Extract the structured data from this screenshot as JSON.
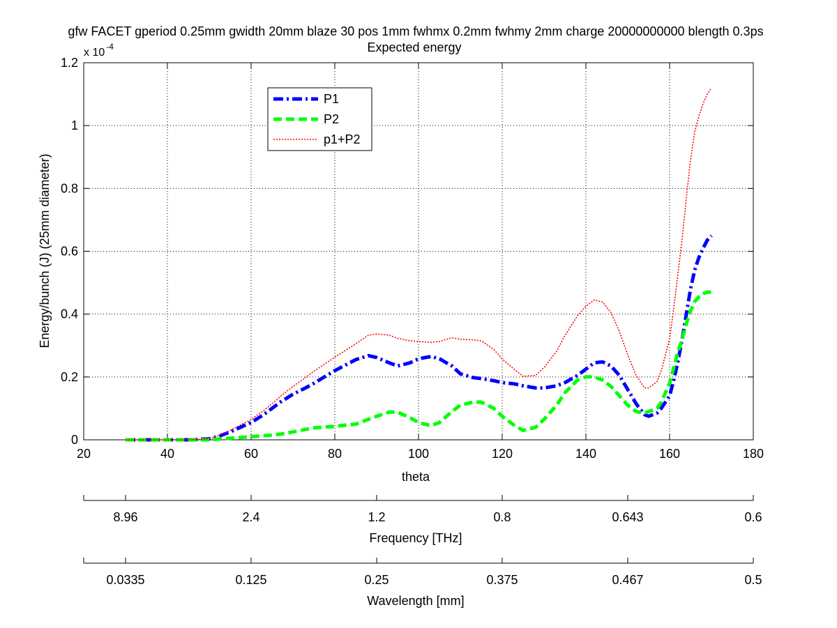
{
  "chart_data": {
    "type": "line",
    "title": "gfw FACET gperiod 0.25mm gwidth 20mm blaze 30 pos 1mm fwhmx 0.2mm fwhmy 2mm charge 20000000000 blength 0.3ps",
    "subtitle": "Expected energy",
    "xlabel": "theta",
    "ylabel": "Energy/bunch (J) (25mm diameter)",
    "y_exponent_label": "x 10",
    "y_exponent_power": "-4",
    "xlim": [
      20,
      180
    ],
    "ylim": [
      0,
      1.2
    ],
    "grid": true,
    "legend_position": "top-left",
    "x_ticks": [
      20,
      40,
      60,
      80,
      100,
      120,
      140,
      160,
      180
    ],
    "x_tick_labels": [
      "20",
      "40",
      "60",
      "80",
      "100",
      "120",
      "140",
      "160",
      "180"
    ],
    "y_ticks": [
      0,
      0.2,
      0.4,
      0.6,
      0.8,
      1.0,
      1.2
    ],
    "y_tick_labels": [
      "0",
      "0.2",
      "0.4",
      "0.6",
      "0.8",
      "1",
      "1.2"
    ],
    "x": [
      30,
      40,
      45,
      50,
      52,
      55,
      60,
      63,
      65,
      67,
      70,
      73,
      75,
      80,
      85,
      88,
      90,
      93,
      95,
      98,
      100,
      103,
      105,
      108,
      110,
      113,
      115,
      118,
      120,
      123,
      125,
      128,
      130,
      133,
      135,
      138,
      140,
      142,
      144,
      146,
      148,
      150,
      152,
      154,
      155,
      157,
      158,
      160,
      161,
      162,
      163,
      164,
      165,
      166,
      167,
      168,
      169,
      170
    ],
    "series": [
      {
        "name": "P1",
        "color": "#0000ff",
        "style": "dash-dot",
        "values": [
          0,
          0,
          0,
          0.003,
          0.01,
          0.025,
          0.055,
          0.08,
          0.1,
          0.12,
          0.145,
          0.165,
          0.18,
          0.22,
          0.255,
          0.268,
          0.262,
          0.245,
          0.235,
          0.245,
          0.258,
          0.265,
          0.258,
          0.235,
          0.21,
          0.198,
          0.195,
          0.188,
          0.182,
          0.178,
          0.172,
          0.165,
          0.165,
          0.172,
          0.182,
          0.205,
          0.225,
          0.245,
          0.248,
          0.235,
          0.205,
          0.16,
          0.115,
          0.08,
          0.075,
          0.085,
          0.1,
          0.14,
          0.19,
          0.25,
          0.32,
          0.4,
          0.48,
          0.54,
          0.58,
          0.61,
          0.635,
          0.65
        ]
      },
      {
        "name": "P2",
        "color": "#00ff00",
        "style": "dashed",
        "values": [
          0,
          0,
          0,
          0,
          0.002,
          0.005,
          0.01,
          0.013,
          0.015,
          0.018,
          0.025,
          0.033,
          0.038,
          0.043,
          0.05,
          0.065,
          0.075,
          0.088,
          0.088,
          0.07,
          0.055,
          0.045,
          0.055,
          0.09,
          0.11,
          0.12,
          0.12,
          0.1,
          0.075,
          0.045,
          0.03,
          0.04,
          0.065,
          0.11,
          0.15,
          0.19,
          0.2,
          0.2,
          0.19,
          0.17,
          0.14,
          0.11,
          0.09,
          0.085,
          0.09,
          0.1,
          0.12,
          0.18,
          0.23,
          0.28,
          0.32,
          0.37,
          0.41,
          0.44,
          0.455,
          0.465,
          0.47,
          0.47
        ]
      },
      {
        "name": "p1+P2",
        "color": "#ff0000",
        "style": "dotted",
        "values": [
          0,
          0,
          0,
          0.003,
          0.012,
          0.03,
          0.065,
          0.093,
          0.115,
          0.138,
          0.17,
          0.198,
          0.218,
          0.263,
          0.305,
          0.333,
          0.337,
          0.333,
          0.323,
          0.315,
          0.313,
          0.31,
          0.313,
          0.325,
          0.32,
          0.318,
          0.315,
          0.288,
          0.257,
          0.223,
          0.202,
          0.205,
          0.23,
          0.282,
          0.332,
          0.395,
          0.425,
          0.445,
          0.438,
          0.405,
          0.345,
          0.27,
          0.205,
          0.165,
          0.165,
          0.185,
          0.22,
          0.32,
          0.42,
          0.53,
          0.64,
          0.77,
          0.89,
          0.98,
          1.03,
          1.07,
          1.1,
          1.12
        ]
      }
    ],
    "secondary_axes": [
      {
        "label": "Frequency [THz]",
        "tick_theta": [
          20,
          30,
          60,
          90,
          120,
          150,
          180
        ],
        "tick_labels": [
          "",
          "8.96",
          "2.4",
          "1.2",
          "0.8",
          "0.643",
          "0.6"
        ]
      },
      {
        "label": "Wavelength [mm]",
        "tick_theta": [
          20,
          30,
          60,
          90,
          120,
          150,
          180
        ],
        "tick_labels": [
          "",
          "0.0335",
          "0.125",
          "0.25",
          "0.375",
          "0.467",
          "0.5"
        ]
      }
    ]
  }
}
